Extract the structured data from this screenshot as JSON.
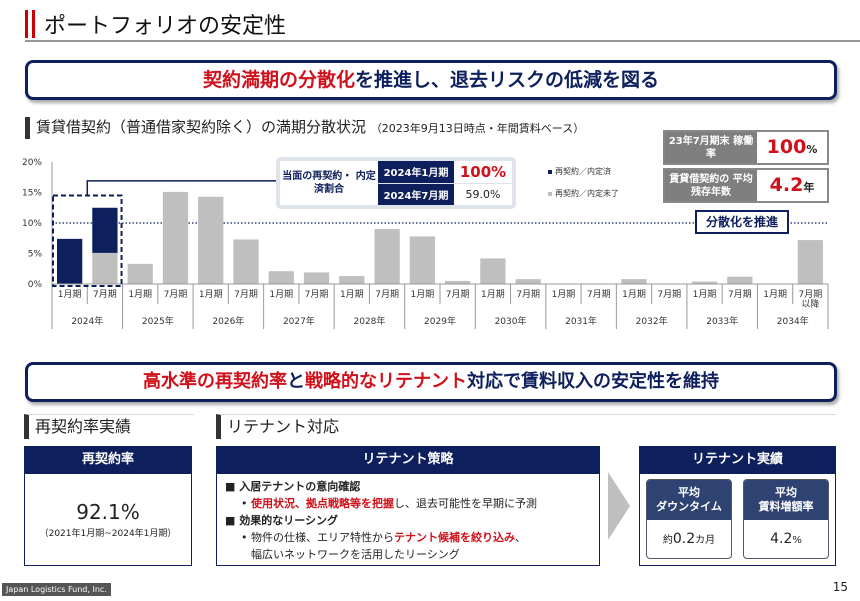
{
  "header": {
    "title": "ポートフォリオの安定性"
  },
  "banner1": {
    "part1": "契約満期の分散化",
    "part2": "を推進し、退去リスクの低減を図る"
  },
  "lease_section": {
    "title": "賃貸借契約（普通借家契約除く）の満期分散状況",
    "note": "（2023年9月13日時点・年間賃料ベース）"
  },
  "kpis": [
    {
      "label": "23年7月期末 稼働率",
      "value": "100",
      "unit": "%"
    },
    {
      "label": "賃貸借契約の 平均残存年数",
      "value": "4.2",
      "unit": "年"
    }
  ],
  "callout": {
    "label": "当面の再契約・ 内定済割合",
    "rows": [
      {
        "period": "2024年1月期",
        "value": "100%"
      },
      {
        "period": "2024年7月期",
        "value": "59.0%"
      }
    ]
  },
  "diversify_label": "分散化を推進",
  "chart_data": {
    "type": "bar",
    "stacked": true,
    "ylim": [
      0,
      20
    ],
    "yticks": [
      "0%",
      "5%",
      "10%",
      "15%",
      "20%"
    ],
    "reference_line": 10,
    "years": [
      "2024年",
      "2025年",
      "2026年",
      "2027年",
      "2028年",
      "2029年",
      "2030年",
      "2031年",
      "2032年",
      "2033年",
      "2034年"
    ],
    "periods": [
      "1月期",
      "7月期",
      "1月期",
      "7月期",
      "1月期",
      "7月期",
      "1月期",
      "7月期",
      "1月期",
      "7月期",
      "1月期",
      "7月期",
      "1月期",
      "7月期",
      "1月期",
      "7月期",
      "1月期",
      "7月期",
      "1月期",
      "7月期",
      "1月期",
      "7月期 以降"
    ],
    "series": [
      {
        "name": "再契約／内定済",
        "color": "#0d1f5c",
        "values": [
          7.4,
          7.4,
          0,
          0,
          0,
          0,
          0,
          0,
          0,
          0,
          0,
          0,
          0,
          0,
          0,
          0,
          0,
          0,
          0,
          0,
          0,
          0
        ]
      },
      {
        "name": "再契約／内定未了",
        "color": "#bfbfbf",
        "values": [
          0,
          5.1,
          3.3,
          15.1,
          14.3,
          7.3,
          2.1,
          1.9,
          1.3,
          9.0,
          7.8,
          0.5,
          4.2,
          0.8,
          0,
          0,
          0.8,
          0,
          0.4,
          1.2,
          0,
          7.2
        ]
      }
    ],
    "legend_position": "top-right"
  },
  "banner2": {
    "part1": "高水準の再契約率",
    "part2": "と",
    "part3": "戦略的なリテナント",
    "part4": "対応で賃料収入の安定性を維持"
  },
  "renewal": {
    "heading": "再契約率実績",
    "box_title": "再契約率",
    "value": "92.1%",
    "period": "（2021年1月期~2024年1月期）"
  },
  "retenant": {
    "heading": "リテナント対応",
    "strategy_title": "リテナント策略",
    "items": [
      {
        "bullet": "入居テナントの意向確認",
        "detail_red": "使用状況、拠点戦略等を把握",
        "detail_rest": "し、退去可能性を早期に予測"
      },
      {
        "bullet": "効果的なリーシング",
        "detail_pre": "物件の仕様、エリア特性から",
        "detail_red": "テナント候補を絞り込み",
        "detail_rest": "、",
        "detail_line2": "幅広いネットワークを活用したリーシング"
      }
    ],
    "results_title": "リテナント実績",
    "results": [
      {
        "label1": "平均",
        "label2": "ダウンタイム",
        "prefix": "約",
        "value": "0.2",
        "unit": "カ月"
      },
      {
        "label1": "平均",
        "label2": "賃料増額率",
        "prefix": "",
        "value": "4.2",
        "unit": "%"
      }
    ]
  },
  "footer": {
    "company": "Japan Logistics Fund, Inc.",
    "page": "15"
  }
}
